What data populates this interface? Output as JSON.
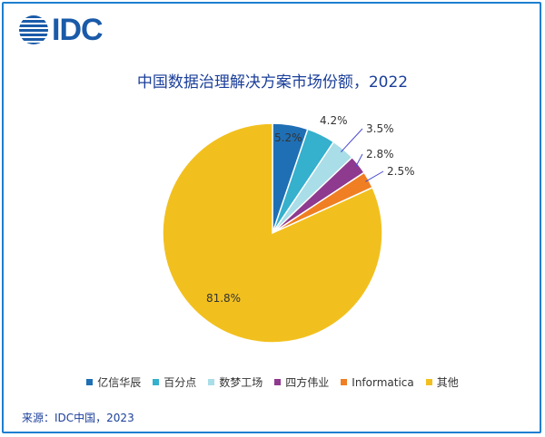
{
  "logo": {
    "text": "IDC",
    "color": "#1a5aa8"
  },
  "chart_data": {
    "type": "pie",
    "title": "中国数据治理解决方案市场份额，2022",
    "unit": "%",
    "slices": [
      {
        "name": "亿信华辰",
        "value": 5.2,
        "label": "5.2%",
        "color": "#1f6fb5"
      },
      {
        "name": "百分点",
        "value": 4.2,
        "label": "4.2%",
        "color": "#35b0cd"
      },
      {
        "name": "数梦工场",
        "value": 3.5,
        "label": "3.5%",
        "color": "#a9dde8"
      },
      {
        "name": "四方伟业",
        "value": 2.8,
        "label": "2.8%",
        "color": "#8e3a8f"
      },
      {
        "name": "Informatica",
        "value": 2.5,
        "label": "2.5%",
        "color": "#ef7f22"
      },
      {
        "name": "其他",
        "value": 81.8,
        "label": "81.8%",
        "color": "#f2c01e"
      }
    ],
    "legend_position": "bottom"
  },
  "source": "来源：IDC中国，2023"
}
